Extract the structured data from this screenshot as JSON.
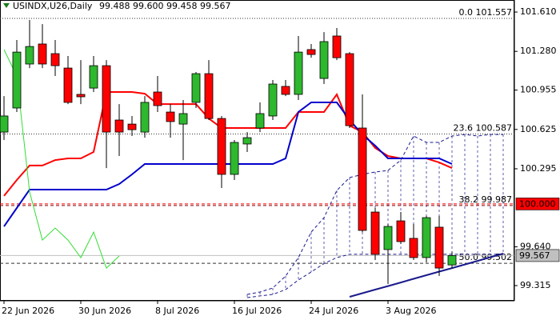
{
  "chart_data": {
    "type": "candlestick",
    "title": "USINDX,U26,Daily",
    "subtitle": "99.488 99.600 99.458 99.567",
    "categories": [
      "22 Jun 2026",
      null,
      null,
      null,
      null,
      null,
      "30 Jun 2026",
      null,
      null,
      null,
      null,
      null,
      "8 Jul 2026",
      null,
      null,
      null,
      null,
      null,
      "16 Jul 2026",
      null,
      null,
      null,
      null,
      null,
      "24 Jul 2026",
      null,
      null,
      null,
      null,
      null,
      "3 Aug 2026",
      null,
      null,
      null,
      null,
      null,
      null,
      null,
      null,
      null
    ],
    "open": [
      100.603,
      100.805,
      101.174,
      101.342,
      101.261,
      101.14,
      100.919,
      100.972,
      101.16,
      100.704,
      100.67,
      100.603,
      100.939,
      100.771,
      100.67,
      100.852,
      101.093,
      100.717,
      100.248,
      100.503,
      100.637,
      100.738,
      100.986,
      100.919,
      101.295,
      101.053,
      101.409,
      101.261,
      100.637,
      99.932,
      99.617,
      99.858,
      99.711,
      99.55,
      99.805,
      99.488,
      null,
      null,
      null,
      null
    ],
    "high": [
      100.905,
      101.375,
      101.543,
      101.509,
      101.375,
      101.241,
      101.207,
      101.241,
      101.207,
      100.838,
      100.738,
      100.905,
      101.073,
      100.838,
      100.872,
      101.107,
      101.207,
      100.738,
      100.536,
      100.603,
      100.852,
      101.04,
      101.04,
      101.409,
      101.342,
      101.442,
      101.476,
      101.274,
      100.919,
      99.966,
      99.832,
      99.932,
      99.832,
      99.899,
      99.899,
      99.6,
      null,
      null,
      null,
      null
    ],
    "low": [
      100.536,
      100.771,
      101.14,
      101.14,
      101.073,
      100.838,
      100.838,
      100.939,
      100.301,
      100.402,
      100.57,
      100.556,
      100.771,
      100.556,
      100.368,
      100.805,
      100.704,
      100.134,
      100.201,
      100.436,
      100.603,
      100.704,
      100.905,
      100.872,
      101.227,
      101.006,
      101.207,
      100.637,
      99.764,
      99.53,
      99.328,
      99.664,
      99.53,
      99.509,
      99.395,
      99.458,
      null,
      null,
      null,
      null
    ],
    "close": [
      100.738,
      101.274,
      101.321,
      101.174,
      101.16,
      100.852,
      100.899,
      101.16,
      100.603,
      100.603,
      100.623,
      100.852,
      100.825,
      100.691,
      100.758,
      101.093,
      100.717,
      100.248,
      100.516,
      100.556,
      100.758,
      101.006,
      100.919,
      101.274,
      101.254,
      101.362,
      101.227,
      100.657,
      99.778,
      99.577,
      99.811,
      99.684,
      99.55,
      99.885,
      99.462,
      99.567,
      null,
      null,
      null,
      null
    ],
    "up_color": "#2eb82e",
    "down_color": "#ff0000",
    "lines": [
      {
        "color": "#ff0000",
        "width": 2,
        "style": "solid",
        "values": [
          100.067,
          100.201,
          100.322,
          100.322,
          100.368,
          100.382,
          100.382,
          100.436,
          100.939,
          100.939,
          100.939,
          100.925,
          100.838,
          100.838,
          100.838,
          100.838,
          100.717,
          100.637,
          100.637,
          100.637,
          100.637,
          100.637,
          100.637,
          100.771,
          100.771,
          100.771,
          100.919,
          100.657,
          100.603,
          100.469,
          100.402,
          100.382,
          100.382,
          100.382,
          100.348,
          100.301,
          null,
          null,
          null,
          null
        ]
      },
      {
        "color": "#0000cc",
        "width": 2,
        "style": "solid",
        "values": [
          99.811,
          99.966,
          100.12,
          100.12,
          100.12,
          100.12,
          100.12,
          100.12,
          100.12,
          100.167,
          100.248,
          100.335,
          100.335,
          100.335,
          100.335,
          100.335,
          100.335,
          100.335,
          100.335,
          100.335,
          100.335,
          100.335,
          100.382,
          100.771,
          100.852,
          100.852,
          100.852,
          100.704,
          100.583,
          100.489,
          100.382,
          100.382,
          100.382,
          100.382,
          100.382,
          100.335,
          null,
          null,
          null,
          null
        ]
      },
      {
        "color": "#33dd33",
        "width": 1,
        "style": "solid",
        "values": [
          101.295,
          101.073,
          100.101,
          99.697,
          99.798,
          99.697,
          99.55,
          99.764,
          99.462,
          99.563,
          null,
          null,
          null,
          null,
          null,
          null,
          null,
          null,
          null,
          null,
          null,
          null,
          null,
          null,
          null,
          null,
          null,
          null,
          null,
          null,
          null,
          null,
          null,
          null,
          null,
          null,
          null,
          null,
          null,
          null
        ]
      },
      {
        "color": "#1a1a8c",
        "width": 1,
        "style": "dashed",
        "values": [
          null,
          null,
          null,
          null,
          null,
          null,
          null,
          null,
          null,
          null,
          null,
          null,
          null,
          null,
          null,
          null,
          null,
          null,
          null,
          99.241,
          99.261,
          99.295,
          99.395,
          99.55,
          99.764,
          99.885,
          100.113,
          100.221,
          100.248,
          100.268,
          100.281,
          100.368,
          100.57,
          100.516,
          100.516,
          100.57,
          100.583,
          100.57,
          100.583,
          100.583
        ]
      },
      {
        "color": "#1a1a8c",
        "width": 1,
        "style": "dashed",
        "values": [
          null,
          null,
          null,
          null,
          null,
          null,
          null,
          null,
          null,
          null,
          null,
          null,
          null,
          null,
          null,
          null,
          null,
          null,
          null,
          99.214,
          99.228,
          99.241,
          99.281,
          99.362,
          99.429,
          99.5,
          99.55,
          99.577,
          99.577,
          99.577,
          99.577,
          99.577,
          99.577,
          99.577,
          99.577,
          99.577,
          99.577,
          99.577,
          99.577,
          99.577
        ]
      },
      {
        "color": "#1a1a8c",
        "width": 2,
        "style": "solid",
        "values": [
          null,
          null,
          null,
          null,
          null,
          null,
          null,
          null,
          null,
          null,
          null,
          null,
          null,
          null,
          null,
          null,
          null,
          null,
          null,
          null,
          null,
          null,
          null,
          null,
          null,
          null,
          null,
          99.221,
          99.251,
          99.281,
          99.311,
          99.341,
          99.372,
          99.402,
          99.432,
          99.462,
          99.492,
          99.522,
          99.553,
          99.583
        ]
      }
    ],
    "cloud": [
      3,
      4
    ],
    "levels": [
      {
        "value": 101.557,
        "label": "0.0 101.557",
        "color": "#333333",
        "style": "dotted"
      },
      {
        "value": 100.587,
        "label": "23.6 100.587",
        "color": "#333333",
        "style": "dotted"
      },
      {
        "value": 99.987,
        "label": "38.2 99.987",
        "color": "#8b0000",
        "style": "dashed"
      },
      {
        "value": 99.502,
        "label": "50.0 99.502",
        "color": "#333333",
        "style": "dashed"
      }
    ],
    "price_labels": [
      {
        "value": 100,
        "label": "100.000",
        "color": "#ff0000",
        "text_color": "#ffffff",
        "style": "dashed"
      },
      {
        "value": 99.567,
        "label": "99.567",
        "color": "#c0c0c0",
        "text_color": "#000000",
        "style": "solid"
      }
    ],
    "ylim": [
      99.194,
      101.711
    ],
    "yticks": [
      {
        "value": 101.61,
        "label": "101.610"
      },
      {
        "value": 101.28,
        "label": "101.280"
      },
      100.955,
      100.625,
      100.295,
      {
        "value": 99.64,
        "label": "99.640"
      },
      99.315
    ],
    "grid": false
  }
}
